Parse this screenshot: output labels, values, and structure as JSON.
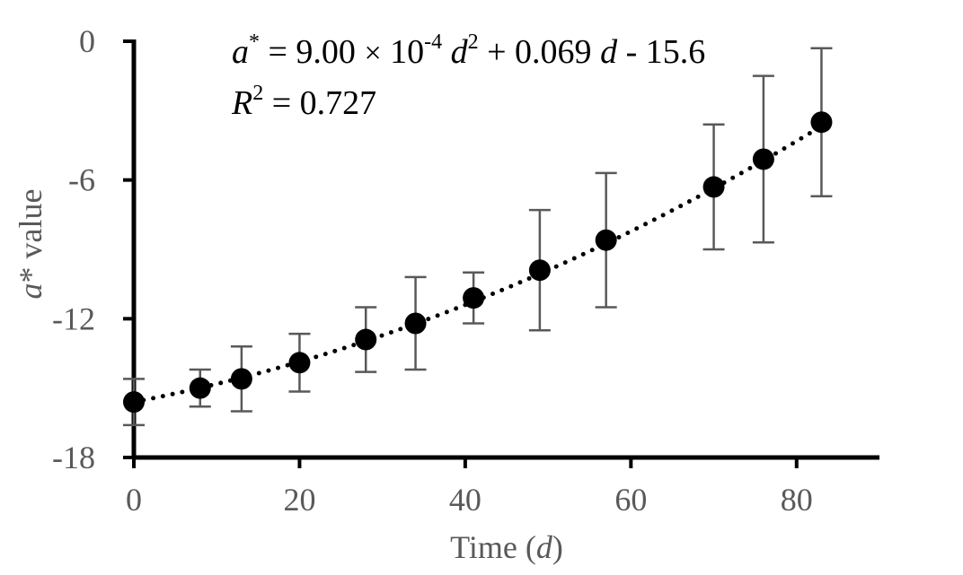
{
  "chart_data": {
    "type": "scatter",
    "xlabel_prefix": "Time (",
    "xlabel_var": "d",
    "xlabel_suffix": ")",
    "ylabel_var": "a",
    "ylabel_suffix": "* value",
    "xlim": [
      0,
      90
    ],
    "ylim": [
      -18,
      0
    ],
    "xticks": [
      "0",
      "20",
      "40",
      "60",
      "80"
    ],
    "yticks": [
      "0",
      "-6",
      "-12",
      "-18"
    ],
    "grid": false,
    "points": [
      {
        "x": 0,
        "y": -15.6,
        "err": 1.0
      },
      {
        "x": 8,
        "y": -15.0,
        "err": 0.8
      },
      {
        "x": 13,
        "y": -14.6,
        "err": 1.4
      },
      {
        "x": 20,
        "y": -13.9,
        "err": 1.25
      },
      {
        "x": 28,
        "y": -12.9,
        "err": 1.4
      },
      {
        "x": 34,
        "y": -12.2,
        "err": 2.0
      },
      {
        "x": 41,
        "y": -11.1,
        "err": 1.1
      },
      {
        "x": 49,
        "y": -9.9,
        "err": 2.6
      },
      {
        "x": 57,
        "y": -8.6,
        "err": 2.9
      },
      {
        "x": 70,
        "y": -6.3,
        "err": 2.7
      },
      {
        "x": 76,
        "y": -5.1,
        "err": 3.6
      },
      {
        "x": 83,
        "y": -3.5,
        "err": 3.2
      }
    ],
    "trendline": {
      "type": "polynomial",
      "a": 0.0009,
      "b": 0.069,
      "c": -15.6,
      "style": "dotted"
    },
    "equation": {
      "lhs": "a",
      "lhs_sup": "*",
      "eq1": " = 9.00 ",
      "times": "×",
      "ten": " 10",
      "ten_sup": "-4",
      "d1": " d",
      "d1_sup": "2",
      "rest1": " + 0.069 ",
      "d2": "d",
      "rest2": " - 15.6"
    },
    "r2": {
      "r": "R",
      "r_sup": "2",
      "value": " = 0.727"
    }
  }
}
